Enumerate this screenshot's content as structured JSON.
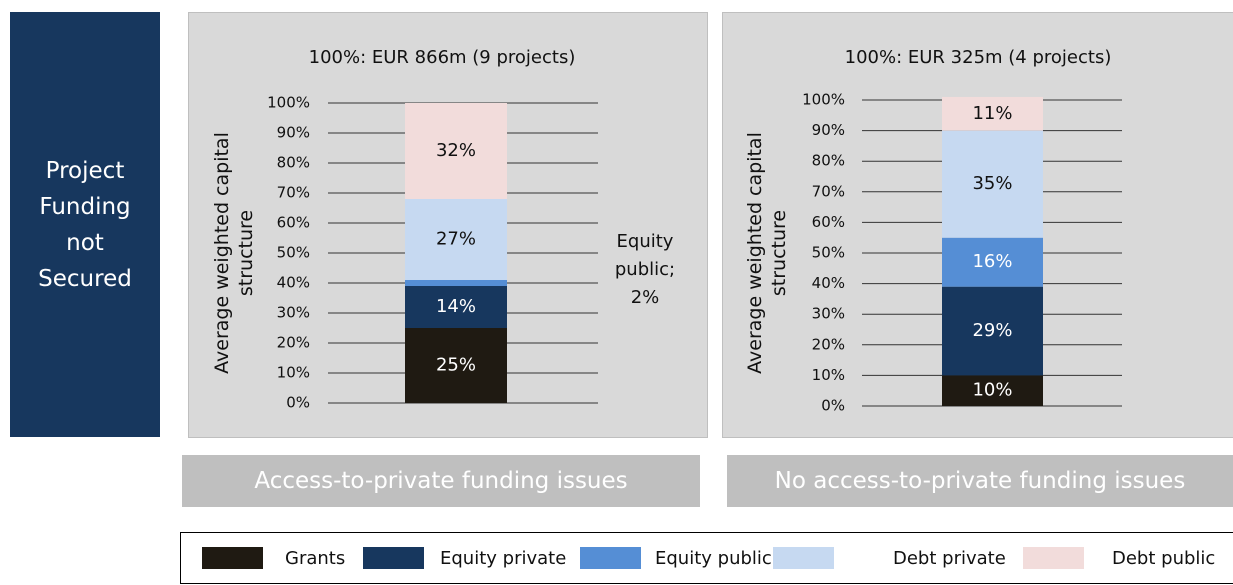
{
  "side_label": "Project Funding not Secured",
  "captions": [
    "Access-to-private funding issues",
    "No access-to-private funding issues"
  ],
  "chart_data": [
    {
      "type": "bar",
      "stacked": true,
      "title": "100%: EUR 866m (9 projects)",
      "y_label": "Average weighted capital structure",
      "ylim": [
        0,
        100
      ],
      "yticks": [
        {
          "value": 0,
          "label": "0%"
        },
        {
          "value": 10,
          "label": "10%"
        },
        {
          "value": 20,
          "label": "20%"
        },
        {
          "value": 30,
          "label": "30%"
        },
        {
          "value": 40,
          "label": "40%"
        },
        {
          "value": 50,
          "label": "50%"
        },
        {
          "value": 60,
          "label": "60%"
        },
        {
          "value": 70,
          "label": "70%"
        },
        {
          "value": 80,
          "label": "80%"
        },
        {
          "value": 90,
          "label": "90%"
        },
        {
          "value": 100,
          "label": "100%"
        }
      ],
      "grid": true,
      "series": [
        {
          "name": "Grants",
          "color": "#1f1a12",
          "values": [
            25
          ],
          "value_labels": [
            "25%"
          ]
        },
        {
          "name": "Equity private",
          "color": "#17375e",
          "values": [
            14
          ],
          "value_labels": [
            "14%"
          ]
        },
        {
          "name": "Equity public",
          "color": "#558ed5",
          "values": [
            2
          ]
        },
        {
          "name": "Debt private",
          "color": "#c6d9f1",
          "values": [
            27
          ],
          "value_labels": [
            "27%"
          ]
        },
        {
          "name": "Debt public",
          "color": "#f2dcdb",
          "values": [
            32
          ],
          "value_labels": [
            "32%"
          ]
        }
      ],
      "annotation": "Equity public; 2%"
    },
    {
      "type": "bar",
      "stacked": true,
      "title": "100%: EUR 325m (4 projects)",
      "y_label": "Average weighted capital structure",
      "ylim": [
        0,
        100
      ],
      "yticks": [
        {
          "value": 0,
          "label": "0%"
        },
        {
          "value": 10,
          "label": "10%"
        },
        {
          "value": 20,
          "label": "20%"
        },
        {
          "value": 30,
          "label": "30%"
        },
        {
          "value": 40,
          "label": "40%"
        },
        {
          "value": 50,
          "label": "50%"
        },
        {
          "value": 60,
          "label": "60%"
        },
        {
          "value": 70,
          "label": "70%"
        },
        {
          "value": 80,
          "label": "80%"
        },
        {
          "value": 90,
          "label": "90%"
        },
        {
          "value": 100,
          "label": "100%"
        }
      ],
      "grid": true,
      "series": [
        {
          "name": "Grants",
          "color": "#1f1a12",
          "values": [
            10
          ],
          "value_labels": [
            "10%"
          ]
        },
        {
          "name": "Equity private",
          "color": "#17375e",
          "values": [
            29
          ],
          "value_labels": [
            "29%"
          ]
        },
        {
          "name": "Equity public",
          "color": "#558ed5",
          "values": [
            16
          ],
          "value_labels": [
            "16%"
          ]
        },
        {
          "name": "Debt private",
          "color": "#c6d9f1",
          "values": [
            35
          ],
          "value_labels": [
            "35%"
          ]
        },
        {
          "name": "Debt public",
          "color": "#f2dcdb",
          "values": [
            11
          ],
          "value_labels": [
            "11%"
          ]
        }
      ]
    }
  ]
}
